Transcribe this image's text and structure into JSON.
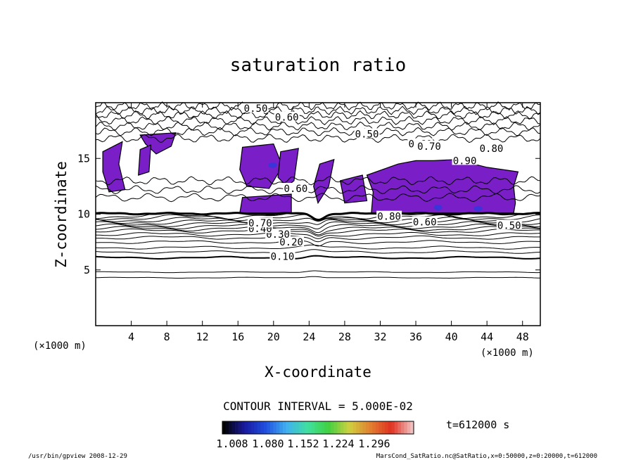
{
  "chart_data": {
    "type": "contour",
    "title": "saturation ratio",
    "xlabel": "X-coordinate",
    "ylabel": "Z-coordinate",
    "x_unit": "(×1000 m)",
    "z_unit": "(×1000 m)",
    "xlim": [
      0,
      50
    ],
    "ylim": [
      0,
      20
    ],
    "x_ticks": [
      4,
      8,
      12,
      16,
      20,
      24,
      28,
      32,
      36,
      40,
      44,
      48
    ],
    "y_ticks": [
      5,
      10,
      15
    ],
    "contour_interval_text": "CONTOUR INTERVAL = 5.000E-02",
    "time_text": "t=612000 s",
    "colorbar_ticks": [
      "1.008",
      "1.080",
      "1.152",
      "1.224",
      "1.296"
    ],
    "colorbar_colors": [
      "#000000",
      "#1a1aa0",
      "#2050e0",
      "#40b0f0",
      "#40e0a0",
      "#40d040",
      "#d0d040",
      "#e08030",
      "#e03020",
      "#f0c0c0"
    ],
    "contour_labels": [
      {
        "text": "0.10",
        "x": 21.0,
        "y": 6.2
      },
      {
        "text": "0.20",
        "x": 22.0,
        "y": 7.5
      },
      {
        "text": "0.30",
        "x": 20.5,
        "y": 8.2
      },
      {
        "text": "0.40",
        "x": 18.5,
        "y": 8.7
      },
      {
        "text": "0.50",
        "x": 18.0,
        "y": 19.5
      },
      {
        "text": "0.60",
        "x": 21.5,
        "y": 18.7
      },
      {
        "text": "0.50",
        "x": 30.5,
        "y": 17.2
      },
      {
        "text": "0.60",
        "x": 36.5,
        "y": 16.3
      },
      {
        "text": "0.70",
        "x": 37.5,
        "y": 16.1
      },
      {
        "text": "0.80",
        "x": 44.5,
        "y": 15.9
      },
      {
        "text": "0.90",
        "x": 41.5,
        "y": 14.8
      },
      {
        "text": "0.60",
        "x": 37.0,
        "y": 9.3
      },
      {
        "text": "0.80",
        "x": 33.0,
        "y": 9.8
      },
      {
        "text": "0.50",
        "x": 46.5,
        "y": 9.0
      },
      {
        "text": "0.60",
        "x": 22.5,
        "y": 12.3
      },
      {
        "text": "0.70",
        "x": 18.5,
        "y": 9.2
      }
    ],
    "supersaturated_fill_color": "#7a1fc8"
  },
  "footer": {
    "left": "/usr/bin/gpview   2008-12-29",
    "right": "MarsCond_SatRatio.nc@SatRatio,x=0:50000,z=0:20000,t=612000"
  }
}
